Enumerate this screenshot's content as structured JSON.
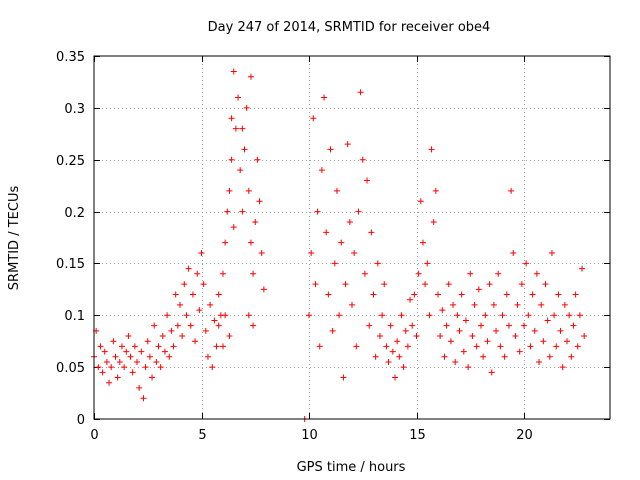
{
  "chart_data": {
    "type": "scatter",
    "title": "Day 247 of 2014, SRMTID for receiver obe4",
    "xlabel": "GPS time / hours",
    "ylabel": "SRMTID / TECUs",
    "xlim": [
      0,
      24
    ],
    "ylim": [
      0,
      0.35
    ],
    "x_ticks": [
      0,
      5,
      10,
      15,
      20
    ],
    "x_tick_labels": [
      "0",
      "5",
      "10",
      "15",
      "20"
    ],
    "y_ticks": [
      0,
      0.05,
      0.1,
      0.15,
      0.2,
      0.25,
      0.3,
      0.35
    ],
    "y_tick_labels": [
      "0",
      "0.05",
      "0.1",
      "0.15",
      "0.2",
      "0.25",
      "0.3",
      "0.35"
    ],
    "grid": true,
    "marker": "plus",
    "color": "#ff0000",
    "series": [
      {
        "name": "SRMTID obe4",
        "points": [
          [
            0.0,
            0.06
          ],
          [
            0.1,
            0.085
          ],
          [
            0.2,
            0.05
          ],
          [
            0.3,
            0.07
          ],
          [
            0.4,
            0.045
          ],
          [
            0.5,
            0.065
          ],
          [
            0.6,
            0.055
          ],
          [
            0.7,
            0.035
          ],
          [
            0.8,
            0.05
          ],
          [
            0.9,
            0.075
          ],
          [
            1.0,
            0.06
          ],
          [
            1.1,
            0.04
          ],
          [
            1.2,
            0.055
          ],
          [
            1.3,
            0.07
          ],
          [
            1.4,
            0.05
          ],
          [
            1.5,
            0.065
          ],
          [
            1.6,
            0.08
          ],
          [
            1.7,
            0.06
          ],
          [
            1.8,
            0.045
          ],
          [
            1.9,
            0.07
          ],
          [
            2.0,
            0.055
          ],
          [
            2.1,
            0.03
          ],
          [
            2.2,
            0.065
          ],
          [
            2.3,
            0.02
          ],
          [
            2.4,
            0.05
          ],
          [
            2.5,
            0.075
          ],
          [
            2.6,
            0.06
          ],
          [
            2.7,
            0.04
          ],
          [
            2.8,
            0.09
          ],
          [
            2.9,
            0.055
          ],
          [
            3.0,
            0.07
          ],
          [
            3.1,
            0.05
          ],
          [
            3.2,
            0.08
          ],
          [
            3.3,
            0.065
          ],
          [
            3.4,
            0.1
          ],
          [
            3.5,
            0.06
          ],
          [
            3.6,
            0.085
          ],
          [
            3.7,
            0.07
          ],
          [
            3.8,
            0.12
          ],
          [
            3.9,
            0.09
          ],
          [
            4.0,
            0.11
          ],
          [
            4.1,
            0.08
          ],
          [
            4.2,
            0.13
          ],
          [
            4.3,
            0.1
          ],
          [
            4.4,
            0.145
          ],
          [
            4.5,
            0.09
          ],
          [
            4.6,
            0.12
          ],
          [
            4.7,
            0.075
          ],
          [
            4.8,
            0.14
          ],
          [
            4.9,
            0.105
          ],
          [
            5.0,
            0.16
          ],
          [
            5.1,
            0.13
          ],
          [
            5.2,
            0.085
          ],
          [
            5.3,
            0.06
          ],
          [
            5.4,
            0.11
          ],
          [
            5.5,
            0.05
          ],
          [
            5.6,
            0.095
          ],
          [
            5.7,
            0.07
          ],
          [
            5.8,
            0.12
          ],
          [
            5.9,
            0.1
          ],
          [
            6.0,
            0.14
          ],
          [
            6.1,
            0.17
          ],
          [
            6.2,
            0.2
          ],
          [
            6.3,
            0.22
          ],
          [
            6.4,
            0.25
          ],
          [
            6.5,
            0.185
          ],
          [
            6.6,
            0.28
          ],
          [
            6.7,
            0.31
          ],
          [
            6.8,
            0.24
          ],
          [
            6.9,
            0.2
          ],
          [
            7.0,
            0.26
          ],
          [
            7.1,
            0.3
          ],
          [
            7.2,
            0.22
          ],
          [
            7.3,
            0.17
          ],
          [
            7.4,
            0.14
          ],
          [
            7.5,
            0.19
          ],
          [
            7.6,
            0.25
          ],
          [
            7.7,
            0.21
          ],
          [
            7.8,
            0.16
          ],
          [
            7.9,
            0.125
          ],
          [
            6.5,
            0.335
          ],
          [
            7.3,
            0.33
          ],
          [
            6.4,
            0.29
          ],
          [
            6.9,
            0.28
          ],
          [
            7.2,
            0.1
          ],
          [
            7.4,
            0.09
          ],
          [
            6.1,
            0.1
          ],
          [
            6.3,
            0.08
          ],
          [
            5.8,
            0.09
          ],
          [
            6.0,
            0.07
          ],
          [
            9.8,
            0.0
          ],
          [
            10.0,
            0.1
          ],
          [
            10.1,
            0.16
          ],
          [
            10.2,
            0.29
          ],
          [
            10.3,
            0.13
          ],
          [
            10.4,
            0.2
          ],
          [
            10.5,
            0.07
          ],
          [
            10.6,
            0.24
          ],
          [
            10.7,
            0.31
          ],
          [
            10.8,
            0.18
          ],
          [
            10.9,
            0.12
          ],
          [
            11.0,
            0.26
          ],
          [
            11.1,
            0.085
          ],
          [
            11.2,
            0.15
          ],
          [
            11.3,
            0.22
          ],
          [
            11.4,
            0.1
          ],
          [
            11.5,
            0.17
          ],
          [
            11.6,
            0.04
          ],
          [
            11.7,
            0.13
          ],
          [
            11.8,
            0.265
          ],
          [
            11.9,
            0.19
          ],
          [
            12.0,
            0.11
          ],
          [
            12.1,
            0.16
          ],
          [
            12.2,
            0.07
          ],
          [
            12.3,
            0.2
          ],
          [
            12.4,
            0.315
          ],
          [
            12.5,
            0.25
          ],
          [
            12.6,
            0.14
          ],
          [
            12.7,
            0.23
          ],
          [
            12.8,
            0.09
          ],
          [
            12.9,
            0.18
          ],
          [
            13.0,
            0.12
          ],
          [
            13.1,
            0.06
          ],
          [
            13.2,
            0.15
          ],
          [
            13.3,
            0.08
          ],
          [
            13.4,
            0.1
          ],
          [
            13.5,
            0.13
          ],
          [
            13.6,
            0.07
          ],
          [
            13.7,
            0.055
          ],
          [
            13.8,
            0.09
          ],
          [
            13.9,
            0.065
          ],
          [
            14.0,
            0.04
          ],
          [
            14.1,
            0.075
          ],
          [
            14.2,
            0.06
          ],
          [
            14.3,
            0.1
          ],
          [
            14.4,
            0.05
          ],
          [
            14.5,
            0.085
          ],
          [
            14.6,
            0.07
          ],
          [
            14.7,
            0.115
          ],
          [
            14.8,
            0.09
          ],
          [
            14.9,
            0.12
          ],
          [
            15.0,
            0.08
          ],
          [
            15.1,
            0.14
          ],
          [
            15.2,
            0.21
          ],
          [
            15.3,
            0.17
          ],
          [
            15.4,
            0.13
          ],
          [
            15.5,
            0.15
          ],
          [
            15.6,
            0.1
          ],
          [
            15.7,
            0.26
          ],
          [
            15.8,
            0.19
          ],
          [
            15.9,
            0.22
          ],
          [
            16.0,
            0.12
          ],
          [
            16.1,
            0.08
          ],
          [
            16.2,
            0.105
          ],
          [
            16.3,
            0.06
          ],
          [
            16.4,
            0.09
          ],
          [
            16.5,
            0.13
          ],
          [
            16.6,
            0.075
          ],
          [
            16.7,
            0.11
          ],
          [
            16.8,
            0.055
          ],
          [
            16.9,
            0.1
          ],
          [
            17.0,
            0.085
          ],
          [
            17.1,
            0.12
          ],
          [
            17.2,
            0.065
          ],
          [
            17.3,
            0.095
          ],
          [
            17.4,
            0.05
          ],
          [
            17.5,
            0.14
          ],
          [
            17.6,
            0.08
          ],
          [
            17.7,
            0.11
          ],
          [
            17.8,
            0.07
          ],
          [
            17.9,
            0.125
          ],
          [
            18.0,
            0.09
          ],
          [
            18.1,
            0.06
          ],
          [
            18.2,
            0.1
          ],
          [
            18.3,
            0.075
          ],
          [
            18.4,
            0.13
          ],
          [
            18.5,
            0.045
          ],
          [
            18.6,
            0.11
          ],
          [
            18.7,
            0.085
          ],
          [
            18.8,
            0.14
          ],
          [
            18.9,
            0.07
          ],
          [
            19.0,
            0.1
          ],
          [
            19.1,
            0.06
          ],
          [
            19.2,
            0.12
          ],
          [
            19.3,
            0.09
          ],
          [
            19.4,
            0.22
          ],
          [
            19.5,
            0.16
          ],
          [
            19.6,
            0.08
          ],
          [
            19.7,
            0.11
          ],
          [
            19.8,
            0.065
          ],
          [
            19.9,
            0.13
          ],
          [
            20.0,
            0.09
          ],
          [
            20.1,
            0.15
          ],
          [
            20.2,
            0.1
          ],
          [
            20.3,
            0.07
          ],
          [
            20.4,
            0.12
          ],
          [
            20.5,
            0.085
          ],
          [
            20.6,
            0.14
          ],
          [
            20.7,
            0.055
          ],
          [
            20.8,
            0.11
          ],
          [
            20.9,
            0.075
          ],
          [
            21.0,
            0.13
          ],
          [
            21.1,
            0.095
          ],
          [
            21.2,
            0.06
          ],
          [
            21.3,
            0.16
          ],
          [
            21.4,
            0.1
          ],
          [
            21.5,
            0.07
          ],
          [
            21.6,
            0.12
          ],
          [
            21.7,
            0.085
          ],
          [
            21.8,
            0.05
          ],
          [
            21.9,
            0.11
          ],
          [
            22.0,
            0.075
          ],
          [
            22.1,
            0.1
          ],
          [
            22.2,
            0.06
          ],
          [
            22.3,
            0.09
          ],
          [
            22.4,
            0.12
          ],
          [
            22.5,
            0.07
          ],
          [
            22.6,
            0.1
          ],
          [
            22.7,
            0.145
          ],
          [
            22.8,
            0.08
          ]
        ]
      }
    ]
  }
}
